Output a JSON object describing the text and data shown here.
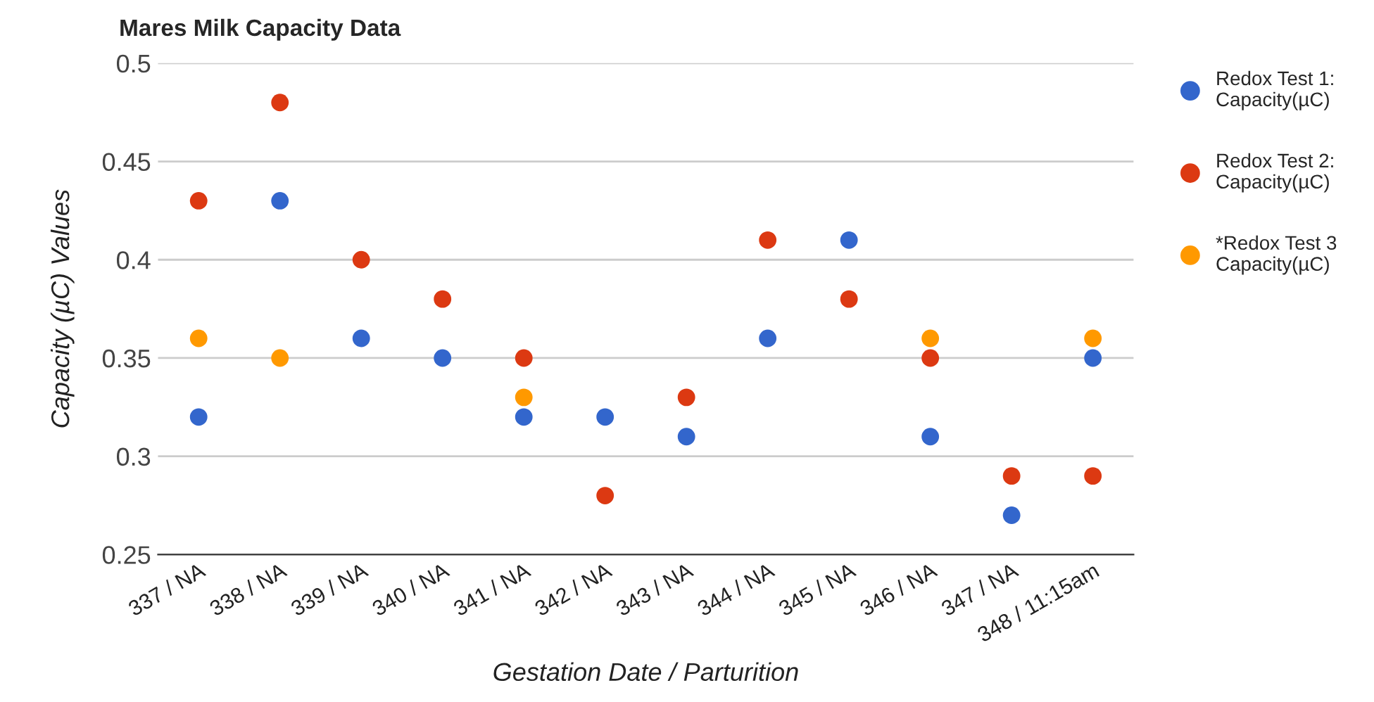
{
  "chart_data": {
    "type": "scatter",
    "title": "Mares Milk Capacity Data",
    "xlabel": "Gestation Date / Parturition",
    "ylabel": "Capacity (µC) Values",
    "categories": [
      "337 / NA",
      "338 / NA",
      "339 / NA",
      "340 / NA",
      "341 / NA",
      "342 / NA",
      "343 / NA",
      "344 / NA",
      "345 / NA",
      "346 / NA",
      "347 / NA",
      "348 / 11:15am"
    ],
    "series": [
      {
        "name": "Redox Test 1:\nCapacity(µC)",
        "color": "#3366cc",
        "values": [
          0.32,
          0.43,
          0.36,
          0.35,
          0.32,
          0.32,
          0.31,
          0.36,
          0.41,
          0.31,
          0.27,
          0.35
        ]
      },
      {
        "name": "Redox Test 2:\nCapacity(µC)",
        "color": "#dc3912",
        "values": [
          0.43,
          0.48,
          0.4,
          0.38,
          0.35,
          0.28,
          0.33,
          0.41,
          0.38,
          0.35,
          0.29,
          0.29
        ]
      },
      {
        "name": "*Redox Test 3\nCapacity(µC)",
        "color": "#ff9900",
        "values": [
          0.36,
          0.35,
          null,
          null,
          0.33,
          null,
          null,
          null,
          null,
          0.36,
          null,
          0.36
        ]
      }
    ],
    "ylim": [
      0.25,
      0.5
    ],
    "yticks": [
      0.25,
      0.3,
      0.35,
      0.4,
      0.45,
      0.5
    ],
    "grid": "y",
    "legend": "right",
    "marker": "circle"
  }
}
